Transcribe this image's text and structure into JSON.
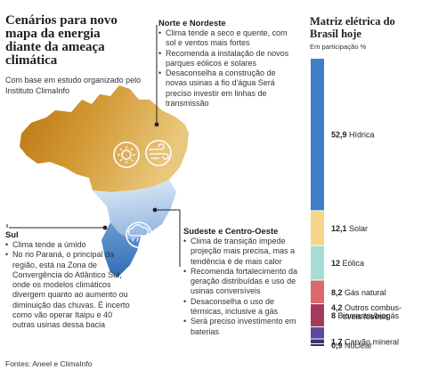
{
  "header": {
    "title": "Cenários para novo mapa da energia diante da ameaça climática",
    "subtitle": "Com base em estudo organizado pelo Instituto ClimaInfo"
  },
  "regions": {
    "norte": {
      "title": "Norte e Nordeste",
      "bullets": [
        "Clima tende a seco e quente, com sol e ventos mais fortes",
        "Recomenda a instalação de novos parques eólicos e solares",
        "Desaconselha a construção de novas usinas a fio d'água Será preciso investir em linhas de transmissão"
      ]
    },
    "sudeste": {
      "title": "Sudeste e Centro-Oeste",
      "bullets": [
        "Clima de transição impede projeção mais precisa, mas a tendência é de mais calor",
        "Recomenda fortalecimento da geração distribuídas e uso de usinas conversíveis",
        "Desaconselha o uso de térmicas, inclusive a gás",
        "Será preciso investimento em baterias"
      ]
    },
    "sul": {
      "title": "Sul",
      "bullets": [
        "Clima tende a úmido",
        "No rio Paraná, o principal da região, está na Zona de Convergência do Atlântico Sul, onde os modelos climáticos divergem quanto ao aumento ou diminuição das chuvas. É incerto como vão operar Itaipu e 40 outras usinas dessa bacia"
      ]
    }
  },
  "icons": [
    "sun-icon",
    "wind-icon",
    "rain-cloud-icon"
  ],
  "colors": {
    "north": "#d9a441",
    "southeast": "#a9c7e6",
    "south": "#4f86c6",
    "connector": "#222222"
  },
  "footer": {
    "source": "Fontes: Aneel e ClimaInfo"
  },
  "chart_data": {
    "type": "bar",
    "title": "Matriz elétrica do Brasil hoje",
    "subtitle": "Em participação %",
    "orientation": "stacked-vertical",
    "categories": [
      "Hídrica",
      "Solar",
      "Eólica",
      "Gás natural",
      "Biomassa/biogás",
      "Outros combustíveis fósesis",
      "Carvão mineral",
      "Nuclear"
    ],
    "values": [
      52.9,
      12.1,
      12,
      8.2,
      8,
      4.2,
      1.7,
      0.9
    ],
    "labels": [
      "52,9 Hídrica",
      "12,1 Solar",
      "12 Eólica",
      "8,2 Gás natural",
      "8 Biomassa/biogás",
      "4,2 Outros combus-",
      "1,7 Carvão mineral",
      "0,9 Nuclear"
    ],
    "label_extra": "tíveis fósesis",
    "colors": [
      "#3f7fc9",
      "#f6d488",
      "#a7dcd5",
      "#dc6a6c",
      "#a63a5c",
      "#5e4a9c",
      "#3d3475",
      "#2a2660"
    ],
    "ylim": [
      0,
      100
    ]
  }
}
